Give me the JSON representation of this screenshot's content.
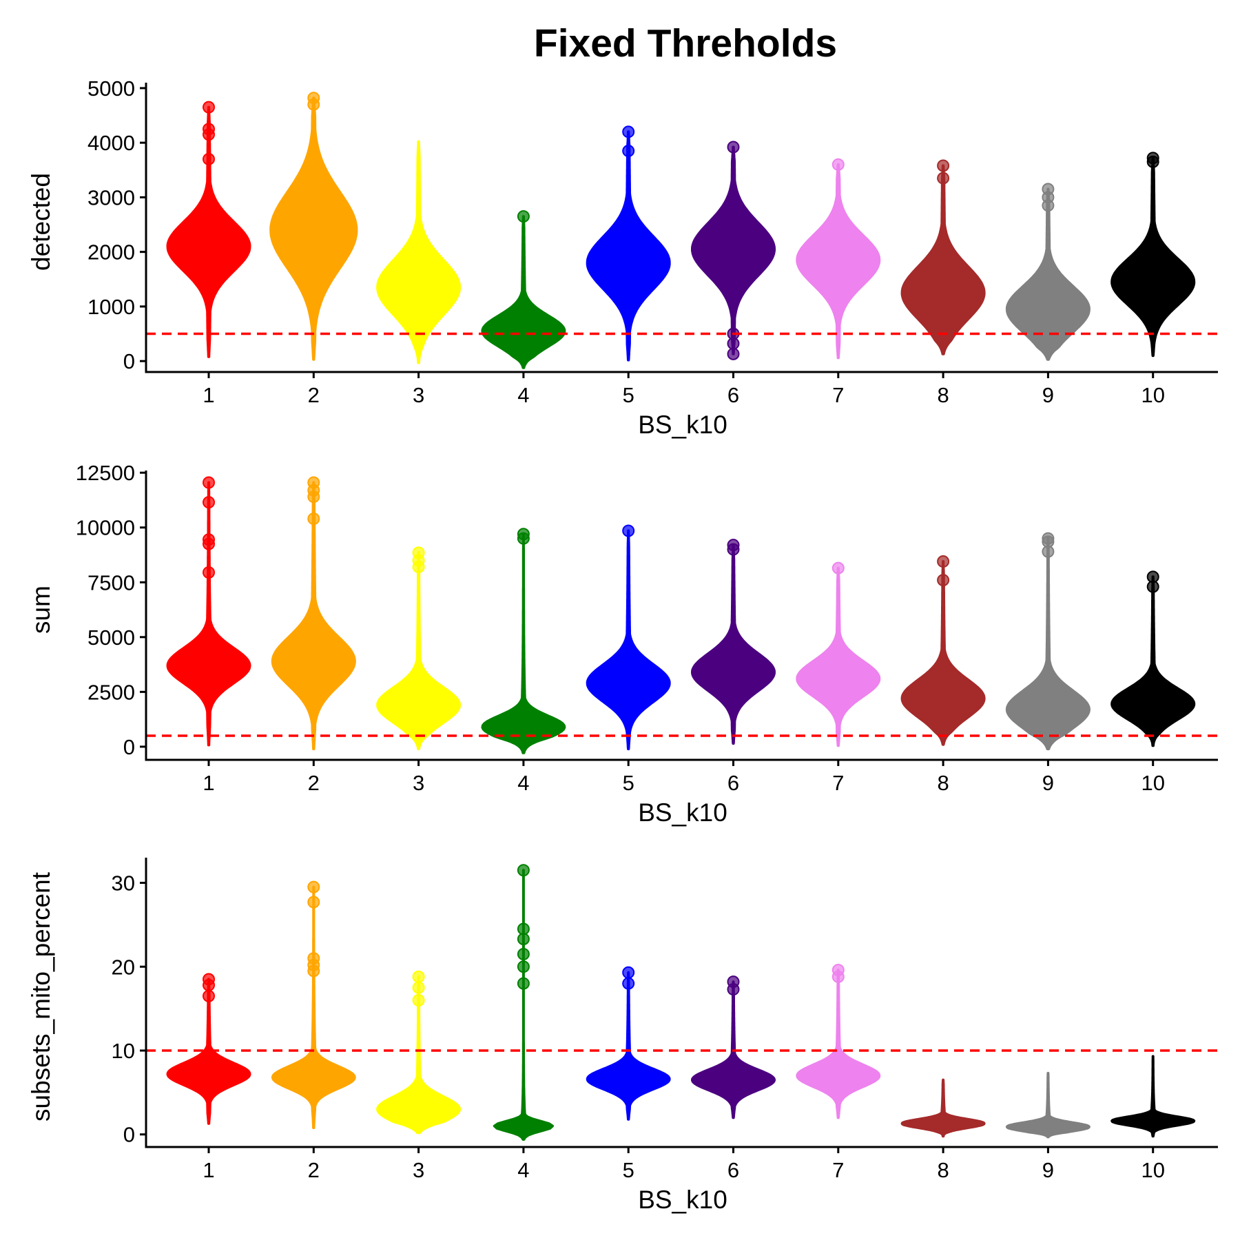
{
  "title": "Fixed Threholds",
  "chart_data": [
    {
      "type": "violin",
      "xlabel": "BS_k10",
      "ylabel": "detected",
      "categories": [
        "1",
        "2",
        "3",
        "4",
        "5",
        "6",
        "7",
        "8",
        "9",
        "10"
      ],
      "yticks": [
        0,
        1000,
        2000,
        3000,
        4000,
        5000
      ],
      "ytick_labels": [
        "0",
        "1000",
        "2000",
        "3000",
        "4000",
        "5000"
      ],
      "ylim": [
        -200,
        5100
      ],
      "threshold": 500,
      "grid": false,
      "series": [
        {
          "category": "1",
          "color": "#FF0000",
          "min": 80,
          "max": 4650,
          "mode": 2100,
          "halfwidth": 0.46,
          "spread": 450,
          "outliers": [
            4650,
            4250,
            4150,
            3700
          ]
        },
        {
          "category": "2",
          "color": "#FFA500",
          "min": 30,
          "max": 4820,
          "mode": 2400,
          "halfwidth": 0.48,
          "spread": 700,
          "outliers": [
            4820,
            4700
          ]
        },
        {
          "category": "3",
          "color": "#FFFF00",
          "min": -30,
          "max": 4020,
          "mode": 1350,
          "halfwidth": 0.46,
          "spread": 500,
          "outliers": []
        },
        {
          "category": "4",
          "color": "#008000",
          "min": -120,
          "max": 2650,
          "mode": 550,
          "halfwidth": 0.46,
          "spread": 280,
          "outliers": [
            2650
          ]
        },
        {
          "category": "5",
          "color": "#0000FF",
          "min": 20,
          "max": 4200,
          "mode": 1800,
          "halfwidth": 0.46,
          "spread": 480,
          "outliers": [
            4200,
            3850
          ]
        },
        {
          "category": "6",
          "color": "#4B0080",
          "min": 130,
          "max": 3920,
          "mode": 2050,
          "halfwidth": 0.46,
          "spread": 480,
          "outliers": [
            3920,
            500,
            320,
            130
          ]
        },
        {
          "category": "7",
          "color": "#EE82EE",
          "min": 60,
          "max": 3600,
          "mode": 1850,
          "halfwidth": 0.46,
          "spread": 450,
          "outliers": [
            3600
          ]
        },
        {
          "category": "8",
          "color": "#A52A2A",
          "min": 130,
          "max": 3580,
          "mode": 1250,
          "halfwidth": 0.46,
          "spread": 480,
          "outliers": [
            3580,
            3350
          ]
        },
        {
          "category": "9",
          "color": "#808080",
          "min": 30,
          "max": 3150,
          "mode": 950,
          "halfwidth": 0.46,
          "spread": 420,
          "outliers": [
            3150,
            3000,
            2850
          ]
        },
        {
          "category": "10",
          "color": "#000000",
          "min": 100,
          "max": 3720,
          "mode": 1450,
          "halfwidth": 0.46,
          "spread": 420,
          "outliers": [
            3720,
            3650
          ]
        }
      ]
    },
    {
      "type": "violin",
      "xlabel": "BS_k10",
      "ylabel": "sum",
      "categories": [
        "1",
        "2",
        "3",
        "4",
        "5",
        "6",
        "7",
        "8",
        "9",
        "10"
      ],
      "yticks": [
        0,
        2500,
        5000,
        7500,
        10000,
        12500
      ],
      "ytick_labels": [
        "0",
        "2500",
        "5000",
        "7500",
        "10000",
        "12500"
      ],
      "ylim": [
        -600,
        12600
      ],
      "threshold": 500,
      "grid": false,
      "series": [
        {
          "category": "1",
          "color": "#FF0000",
          "min": 80,
          "max": 12050,
          "mode": 3700,
          "halfwidth": 0.46,
          "spread": 800,
          "outliers": [
            12050,
            11150,
            9450,
            9250,
            7950
          ]
        },
        {
          "category": "2",
          "color": "#FFA500",
          "min": -100,
          "max": 12050,
          "mode": 3900,
          "halfwidth": 0.46,
          "spread": 1100,
          "outliers": [
            12050,
            11700,
            11400,
            10400
          ]
        },
        {
          "category": "3",
          "color": "#FFFF00",
          "min": -100,
          "max": 8850,
          "mode": 1900,
          "halfwidth": 0.46,
          "spread": 800,
          "outliers": [
            8850,
            8500,
            8200
          ]
        },
        {
          "category": "4",
          "color": "#008000",
          "min": -280,
          "max": 9700,
          "mode": 900,
          "halfwidth": 0.46,
          "spread": 500,
          "outliers": [
            9700,
            9500
          ]
        },
        {
          "category": "5",
          "color": "#0000FF",
          "min": -100,
          "max": 9850,
          "mode": 2900,
          "halfwidth": 0.46,
          "spread": 850,
          "outliers": [
            9850
          ]
        },
        {
          "category": "6",
          "color": "#4B0080",
          "min": 150,
          "max": 9200,
          "mode": 3400,
          "halfwidth": 0.46,
          "spread": 850,
          "outliers": [
            9200,
            9000
          ]
        },
        {
          "category": "7",
          "color": "#EE82EE",
          "min": 50,
          "max": 8150,
          "mode": 3100,
          "halfwidth": 0.46,
          "spread": 800,
          "outliers": [
            8150
          ]
        },
        {
          "category": "8",
          "color": "#A52A2A",
          "min": 100,
          "max": 8450,
          "mode": 2200,
          "halfwidth": 0.46,
          "spread": 850,
          "outliers": [
            8450,
            7600
          ]
        },
        {
          "category": "9",
          "color": "#808080",
          "min": -100,
          "max": 9500,
          "mode": 1700,
          "halfwidth": 0.46,
          "spread": 850,
          "outliers": [
            9500,
            9350,
            8900
          ]
        },
        {
          "category": "10",
          "color": "#000000",
          "min": 50,
          "max": 7750,
          "mode": 1950,
          "halfwidth": 0.46,
          "spread": 700,
          "outliers": [
            7750,
            7300
          ]
        }
      ]
    },
    {
      "type": "violin",
      "xlabel": "BS_k10",
      "ylabel": "subsets_mito_percent",
      "categories": [
        "1",
        "2",
        "3",
        "4",
        "5",
        "6",
        "7",
        "8",
        "9",
        "10"
      ],
      "yticks": [
        0,
        10,
        20,
        30
      ],
      "ytick_labels": [
        "0",
        "10",
        "20",
        "30"
      ],
      "ylim": [
        -1.5,
        33
      ],
      "threshold": 10,
      "grid": false,
      "series": [
        {
          "category": "1",
          "color": "#FF0000",
          "min": 1.3,
          "max": 18.5,
          "mode": 7.2,
          "halfwidth": 0.46,
          "spread": 1.3,
          "outliers": [
            18.5,
            17.8,
            16.5
          ]
        },
        {
          "category": "2",
          "color": "#FFA500",
          "min": 0.8,
          "max": 29.5,
          "mode": 6.8,
          "halfwidth": 0.46,
          "spread": 1.3,
          "outliers": [
            29.5,
            27.7,
            21.0,
            20.2,
            19.5
          ]
        },
        {
          "category": "3",
          "color": "#FFFF00",
          "min": 0.2,
          "max": 18.8,
          "mode": 3.0,
          "halfwidth": 0.46,
          "spread": 1.5,
          "outliers": [
            18.8,
            17.5,
            16.0
          ]
        },
        {
          "category": "4",
          "color": "#008000",
          "min": -0.6,
          "max": 31.5,
          "mode": 0.8,
          "halfwidth": 0.46,
          "spread": 0.6,
          "outliers": [
            31.5,
            24.5,
            23.3,
            21.5,
            20.0,
            18.0
          ]
        },
        {
          "category": "5",
          "color": "#0000FF",
          "min": 1.8,
          "max": 19.3,
          "mode": 6.6,
          "halfwidth": 0.46,
          "spread": 1.2,
          "outliers": [
            19.3,
            18.0
          ]
        },
        {
          "category": "6",
          "color": "#4B0080",
          "min": 2.0,
          "max": 18.2,
          "mode": 6.5,
          "halfwidth": 0.46,
          "spread": 1.2,
          "outliers": [
            18.2,
            17.3
          ]
        },
        {
          "category": "7",
          "color": "#EE82EE",
          "min": 2.0,
          "max": 19.6,
          "mode": 7.0,
          "halfwidth": 0.46,
          "spread": 1.3,
          "outliers": [
            19.6,
            18.8
          ]
        },
        {
          "category": "8",
          "color": "#A52A2A",
          "min": -0.2,
          "max": 6.5,
          "mode": 1.3,
          "halfwidth": 0.46,
          "spread": 0.5,
          "outliers": []
        },
        {
          "category": "9",
          "color": "#808080",
          "min": -0.3,
          "max": 7.3,
          "mode": 0.9,
          "halfwidth": 0.46,
          "spread": 0.5,
          "outliers": []
        },
        {
          "category": "10",
          "color": "#000000",
          "min": -0.2,
          "max": 9.3,
          "mode": 1.6,
          "halfwidth": 0.46,
          "spread": 0.5,
          "outliers": []
        }
      ]
    }
  ]
}
